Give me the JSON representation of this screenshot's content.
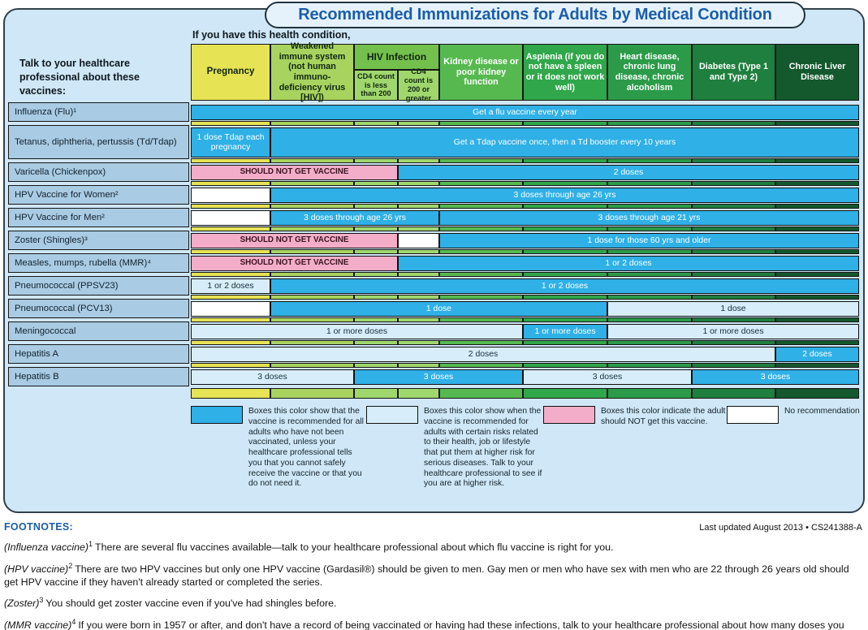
{
  "title": "Recommended Immunizations for Adults by Medical Condition",
  "colors": {
    "board_bg": "#cfe7f6",
    "board_border": "#32404a",
    "pill_bg": "#e6f2fb",
    "title_blue": "#1b5ea9",
    "label_bg": "#a9cbe3",
    "recommended_blue": "#2fb0e6",
    "risk_blue": "#d7edf9",
    "not_pink": "#f4adc8",
    "none_white": "#ffffff",
    "col_pregnancy": "#e6e354",
    "col_weakened": "#a8d35f",
    "col_hiv_header": "#74c04d",
    "col_hiv_sub": "#a0d76d",
    "col_kidney": "#56b94f",
    "col_asplenia": "#30a74a",
    "col_heart": "#2b9b49",
    "col_diabetes": "#1f7f3e",
    "col_liver": "#13592d"
  },
  "header": {
    "condition_prompt": "If you have this health condition,",
    "vaccine_prompt": "Talk to your healthcare professional about these vaccines:",
    "columns": [
      {
        "label": "Pregnancy"
      },
      {
        "label": "Weakened immune system (not human immuno-deficiency virus [HIV])"
      },
      {
        "label": "HIV Infection",
        "sub": [
          "CD4 count is less than 200",
          "CD4 count is 200 or greater"
        ]
      },
      {
        "label": "Kidney disease or poor kidney function"
      },
      {
        "label": "Asplenia (if you do not have a spleen or it does not work well)"
      },
      {
        "label": "Heart disease, chronic lung disease, chronic alcoholism"
      },
      {
        "label": "Diabetes (Type 1 and Type 2)"
      },
      {
        "label": "Chronic Liver Disease"
      }
    ]
  },
  "strip_colors": [
    "col_pregnancy",
    "col_weakened",
    "col_hiv_sub",
    "col_hiv_sub",
    "col_kidney",
    "col_asplenia",
    "col_heart",
    "col_diabetes",
    "col_liver"
  ],
  "table": {
    "cell_types": {
      "rec": "recommended for all adults",
      "risk": "recommended with certain risks",
      "not": "should not get",
      "none": "no recommendation"
    },
    "rows": [
      {
        "label": "Influenza (Flu)¹",
        "cells": [
          {
            "span": 9,
            "type": "rec",
            "text": "Get a flu vaccine every year"
          }
        ]
      },
      {
        "label": "Tetanus, diphtheria, pertussis (Td/Tdap)",
        "tall": true,
        "cells": [
          {
            "span": 1,
            "type": "rec",
            "text": "1 dose Tdap each pregnancy"
          },
          {
            "span": 8,
            "type": "rec",
            "text": "Get a Tdap vaccine once, then a Td booster every 10 years"
          }
        ]
      },
      {
        "label": "Varicella (Chickenpox)",
        "cells": [
          {
            "span": 3,
            "type": "not",
            "text": "SHOULD NOT GET VACCINE"
          },
          {
            "span": 6,
            "type": "rec",
            "text": "2 doses"
          }
        ]
      },
      {
        "label": "HPV Vaccine for Women²",
        "cells": [
          {
            "span": 1,
            "type": "none",
            "text": ""
          },
          {
            "span": 8,
            "type": "rec",
            "text": "3 doses through age 26 yrs"
          }
        ]
      },
      {
        "label": "HPV Vaccine for Men²",
        "cells": [
          {
            "span": 1,
            "type": "none",
            "text": ""
          },
          {
            "span": 3,
            "type": "rec",
            "text": "3 doses through age 26 yrs"
          },
          {
            "span": 5,
            "type": "rec",
            "text": "3 doses through age 21 yrs"
          }
        ]
      },
      {
        "label": "Zoster (Shingles)³",
        "cells": [
          {
            "span": 3,
            "type": "not",
            "text": "SHOULD NOT GET VACCINE"
          },
          {
            "span": 1,
            "type": "none",
            "text": ""
          },
          {
            "span": 5,
            "type": "rec",
            "text": "1 dose for those 60 yrs and older"
          }
        ]
      },
      {
        "label": "Measles, mumps, rubella (MMR)⁴",
        "cells": [
          {
            "span": 3,
            "type": "not",
            "text": "SHOULD NOT GET VACCINE"
          },
          {
            "span": 6,
            "type": "rec",
            "text": "1 or 2 doses"
          }
        ]
      },
      {
        "label": "Pneumococcal (PPSV23)",
        "cells": [
          {
            "span": 1,
            "type": "risk",
            "text": "1 or 2 doses"
          },
          {
            "span": 8,
            "type": "rec",
            "text": "1 or 2 doses"
          }
        ]
      },
      {
        "label": "Pneumococcal (PCV13)",
        "cells": [
          {
            "span": 1,
            "type": "none",
            "text": ""
          },
          {
            "span": 5,
            "type": "rec",
            "text": "1 dose"
          },
          {
            "span": 3,
            "type": "risk",
            "text": "1 dose"
          }
        ]
      },
      {
        "label": "Meningococcal",
        "cells": [
          {
            "span": 5,
            "type": "risk",
            "text": "1 or more  doses"
          },
          {
            "span": 1,
            "type": "rec",
            "text": "1 or more  doses"
          },
          {
            "span": 3,
            "type": "risk",
            "text": "1 or more  doses"
          }
        ]
      },
      {
        "label": "Hepatitis A",
        "cells": [
          {
            "span": 8,
            "type": "risk",
            "text": "2 doses"
          },
          {
            "span": 1,
            "type": "rec",
            "text": "2 doses"
          }
        ]
      },
      {
        "label": "Hepatitis B",
        "cells": [
          {
            "span": 2,
            "type": "risk",
            "text": "3 doses"
          },
          {
            "span": 3,
            "type": "rec",
            "text": "3 doses"
          },
          {
            "span": 2,
            "type": "risk",
            "text": "3 doses"
          },
          {
            "span": 2,
            "type": "rec",
            "text": "3 doses"
          }
        ]
      }
    ]
  },
  "legend": [
    {
      "name": "recommended",
      "text": "Boxes this color show that the vaccine is recommended for all adults who have not been vaccinated, unless your healthcare professional tells you that you cannot safely receive the vaccine or that you do not need it."
    },
    {
      "name": "risk",
      "text": "Boxes this color show when the vaccine is recommended for adults with certain risks related to their health, job or lifestyle that put them at higher risk for serious diseases. Talk to your healthcare professional to see if you are at higher risk."
    },
    {
      "name": "should-not",
      "text": "Boxes this color indicate the adult should NOT get this vaccine."
    },
    {
      "name": "none",
      "text": "No recommendation"
    }
  ],
  "footer": {
    "footnotes_heading": "FOOTNOTES:",
    "last_updated": "Last updated August 2013 • CS241388-A",
    "notes": [
      {
        "lead": "(Influenza vaccine)",
        "sup": "1",
        "text": "There are several flu vaccines available—talk to your healthcare professional about which flu vaccine is right for you."
      },
      {
        "lead": "(HPV vaccine)",
        "sup": "2",
        "text": "There are two HPV vaccines but only one HPV vaccine (Gardasil®) should be given to men. Gay men or men who have sex with men who are 22 through 26 years old should get HPV vaccine if they haven't already started or completed the series."
      },
      {
        "lead": "(Zoster)",
        "sup": "3",
        "text": "You should get zoster vaccine even if you've had shingles before."
      },
      {
        "lead": "(MMR vaccine)",
        "sup": "4",
        "text": "If you were born in 1957 or after, and don't have a record of being vaccinated or having had these infections, talk to your healthcare professional about how many doses you may need."
      }
    ]
  }
}
